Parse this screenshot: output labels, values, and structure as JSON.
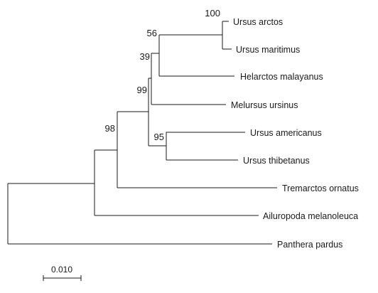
{
  "tree": {
    "taxa": {
      "ursus_arctos": "Ursus arctos",
      "ursus_maritimus": "Ursus maritimus",
      "helarctos_malayanus": "Helarctos malayanus",
      "melursus_ursinus": "Melursus ursinus",
      "ursus_americanus": "Ursus americanus",
      "ursus_thibetanus": "Ursus thibetanus",
      "tremarctos_ornatus": "Tremarctos ornatus",
      "ailuropoda_melanoleuca": "Ailuropoda melanoleuca",
      "panthera_pardus": "Panthera pardus"
    },
    "bootstrap": {
      "arctos_maritimus": "100",
      "arctos_helarctos": "56",
      "arctos_melursus": "39",
      "ursinae": "99",
      "americanus_thibetanus": "95",
      "ursidae_tremarctos": "98"
    },
    "scale_bar": {
      "label": "0.010"
    }
  }
}
